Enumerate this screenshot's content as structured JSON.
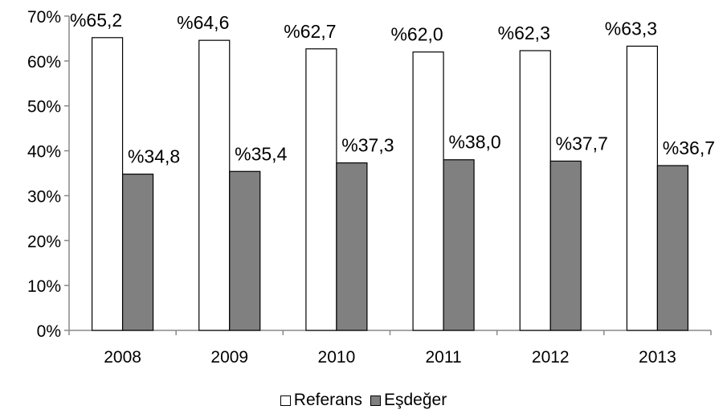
{
  "chart_data": {
    "type": "bar",
    "title": "",
    "xlabel": "",
    "ylabel": "",
    "categories": [
      "2008",
      "2009",
      "2010",
      "2011",
      "2012",
      "2013"
    ],
    "ylim": [
      0,
      70
    ],
    "yticks": [
      0,
      10,
      20,
      30,
      40,
      50,
      60,
      70
    ],
    "ytick_labels": [
      "0%",
      "10%",
      "20%",
      "30%",
      "40%",
      "50%",
      "60%",
      "70%"
    ],
    "grid": false,
    "legend_position": "bottom-center",
    "series": [
      {
        "name": "Referans",
        "color": "#ffffff",
        "values": [
          65.2,
          64.6,
          62.7,
          62.0,
          62.3,
          63.3
        ],
        "labels": [
          "%65,2",
          "%64,6",
          "%62,7",
          "%62,0",
          "%62,3",
          "%63,3"
        ]
      },
      {
        "name": "Eşdeğer",
        "color": "#808080",
        "values": [
          34.8,
          35.4,
          37.3,
          38.0,
          37.7,
          36.7
        ],
        "labels": [
          "%34,8",
          "%35,4",
          "%37,3",
          "%38,0",
          "%37,7",
          "%36,7"
        ]
      }
    ]
  }
}
